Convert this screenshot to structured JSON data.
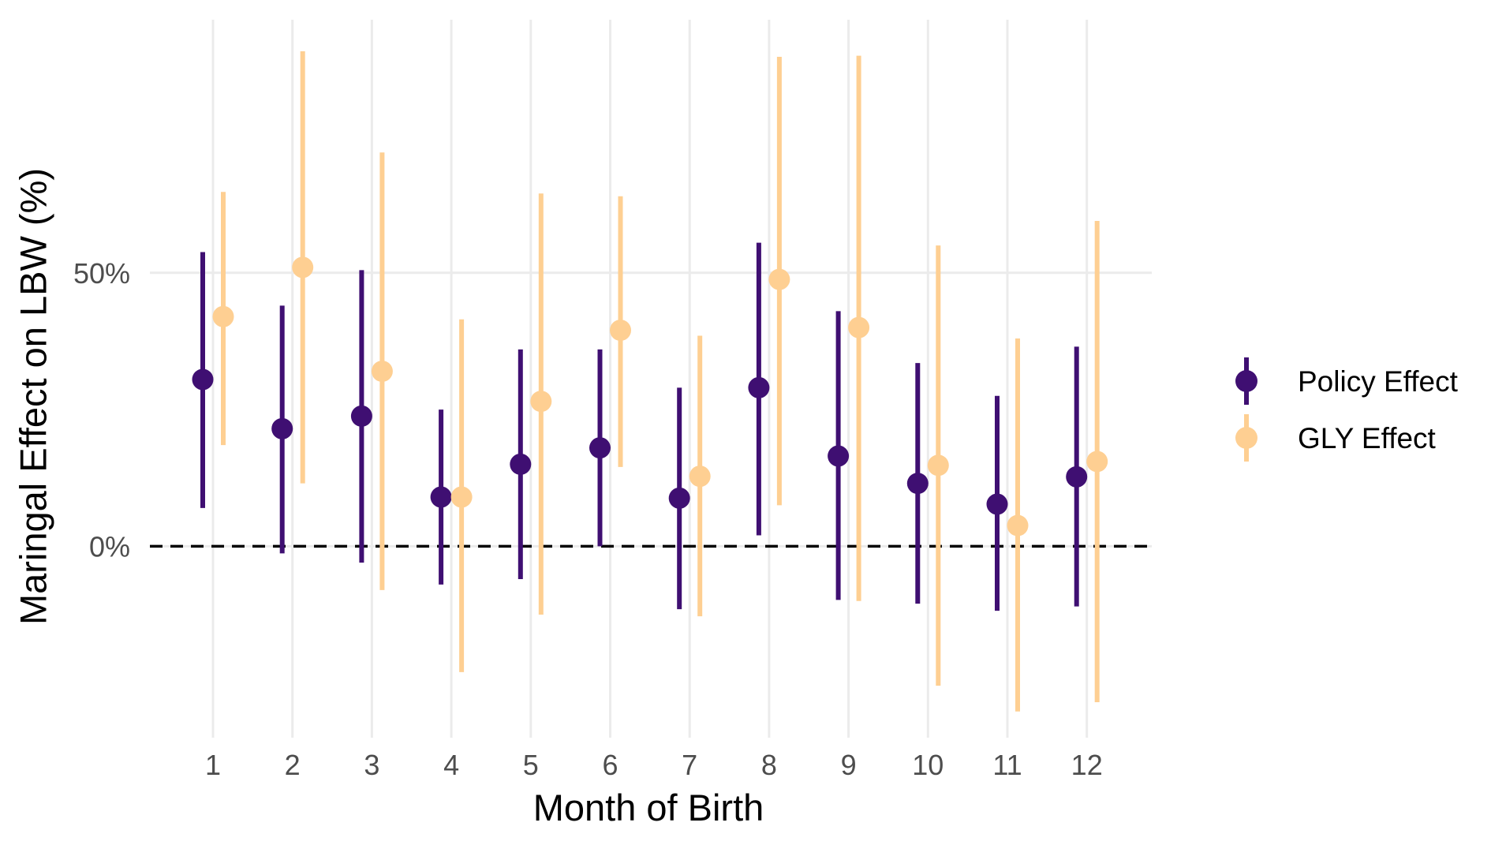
{
  "chart_data": {
    "type": "scatter",
    "subtype": "point-range",
    "xlabel": "Month of Birth",
    "ylabel": "Maringal Effect on LBW (%)",
    "categories": [
      "1",
      "2",
      "3",
      "4",
      "5",
      "6",
      "7",
      "8",
      "9",
      "10",
      "11",
      "12"
    ],
    "y_ticks": [
      {
        "value": 0,
        "label": "0%"
      },
      {
        "value": 50,
        "label": "50%"
      }
    ],
    "ylim": [
      -35,
      97
    ],
    "reference_line": {
      "value": 0,
      "style": "dashed",
      "color": "#000000"
    },
    "grid": true,
    "legend_position": "right",
    "series": [
      {
        "name": "Policy Effect",
        "color": "#3f0f72",
        "estimate": [
          30.5,
          21.5,
          23.8,
          9.0,
          15.0,
          18.0,
          8.8,
          29.0,
          16.5,
          11.5,
          7.7,
          12.7
        ],
        "lower": [
          7.0,
          -1.3,
          -3.0,
          -7.0,
          -6.0,
          0.0,
          -11.5,
          2.0,
          -9.8,
          -10.5,
          -11.8,
          -11.0
        ],
        "upper": [
          53.8,
          44.0,
          50.5,
          25.0,
          36.0,
          36.0,
          29.0,
          55.5,
          43.0,
          33.5,
          27.5,
          36.5
        ]
      },
      {
        "name": "GLY Effect",
        "color": "#fecf92",
        "estimate": [
          42.0,
          51.0,
          32.0,
          9.0,
          26.5,
          39.5,
          12.8,
          48.8,
          40.0,
          14.8,
          3.8,
          15.5
        ],
        "lower": [
          18.5,
          11.5,
          -8.0,
          -23.0,
          -12.5,
          14.5,
          -12.8,
          7.5,
          -10.0,
          -25.5,
          -30.2,
          -28.5
        ],
        "upper": [
          64.8,
          90.5,
          72.0,
          41.5,
          64.5,
          64.0,
          38.5,
          89.5,
          89.7,
          55.0,
          38.0,
          59.5
        ]
      }
    ]
  }
}
